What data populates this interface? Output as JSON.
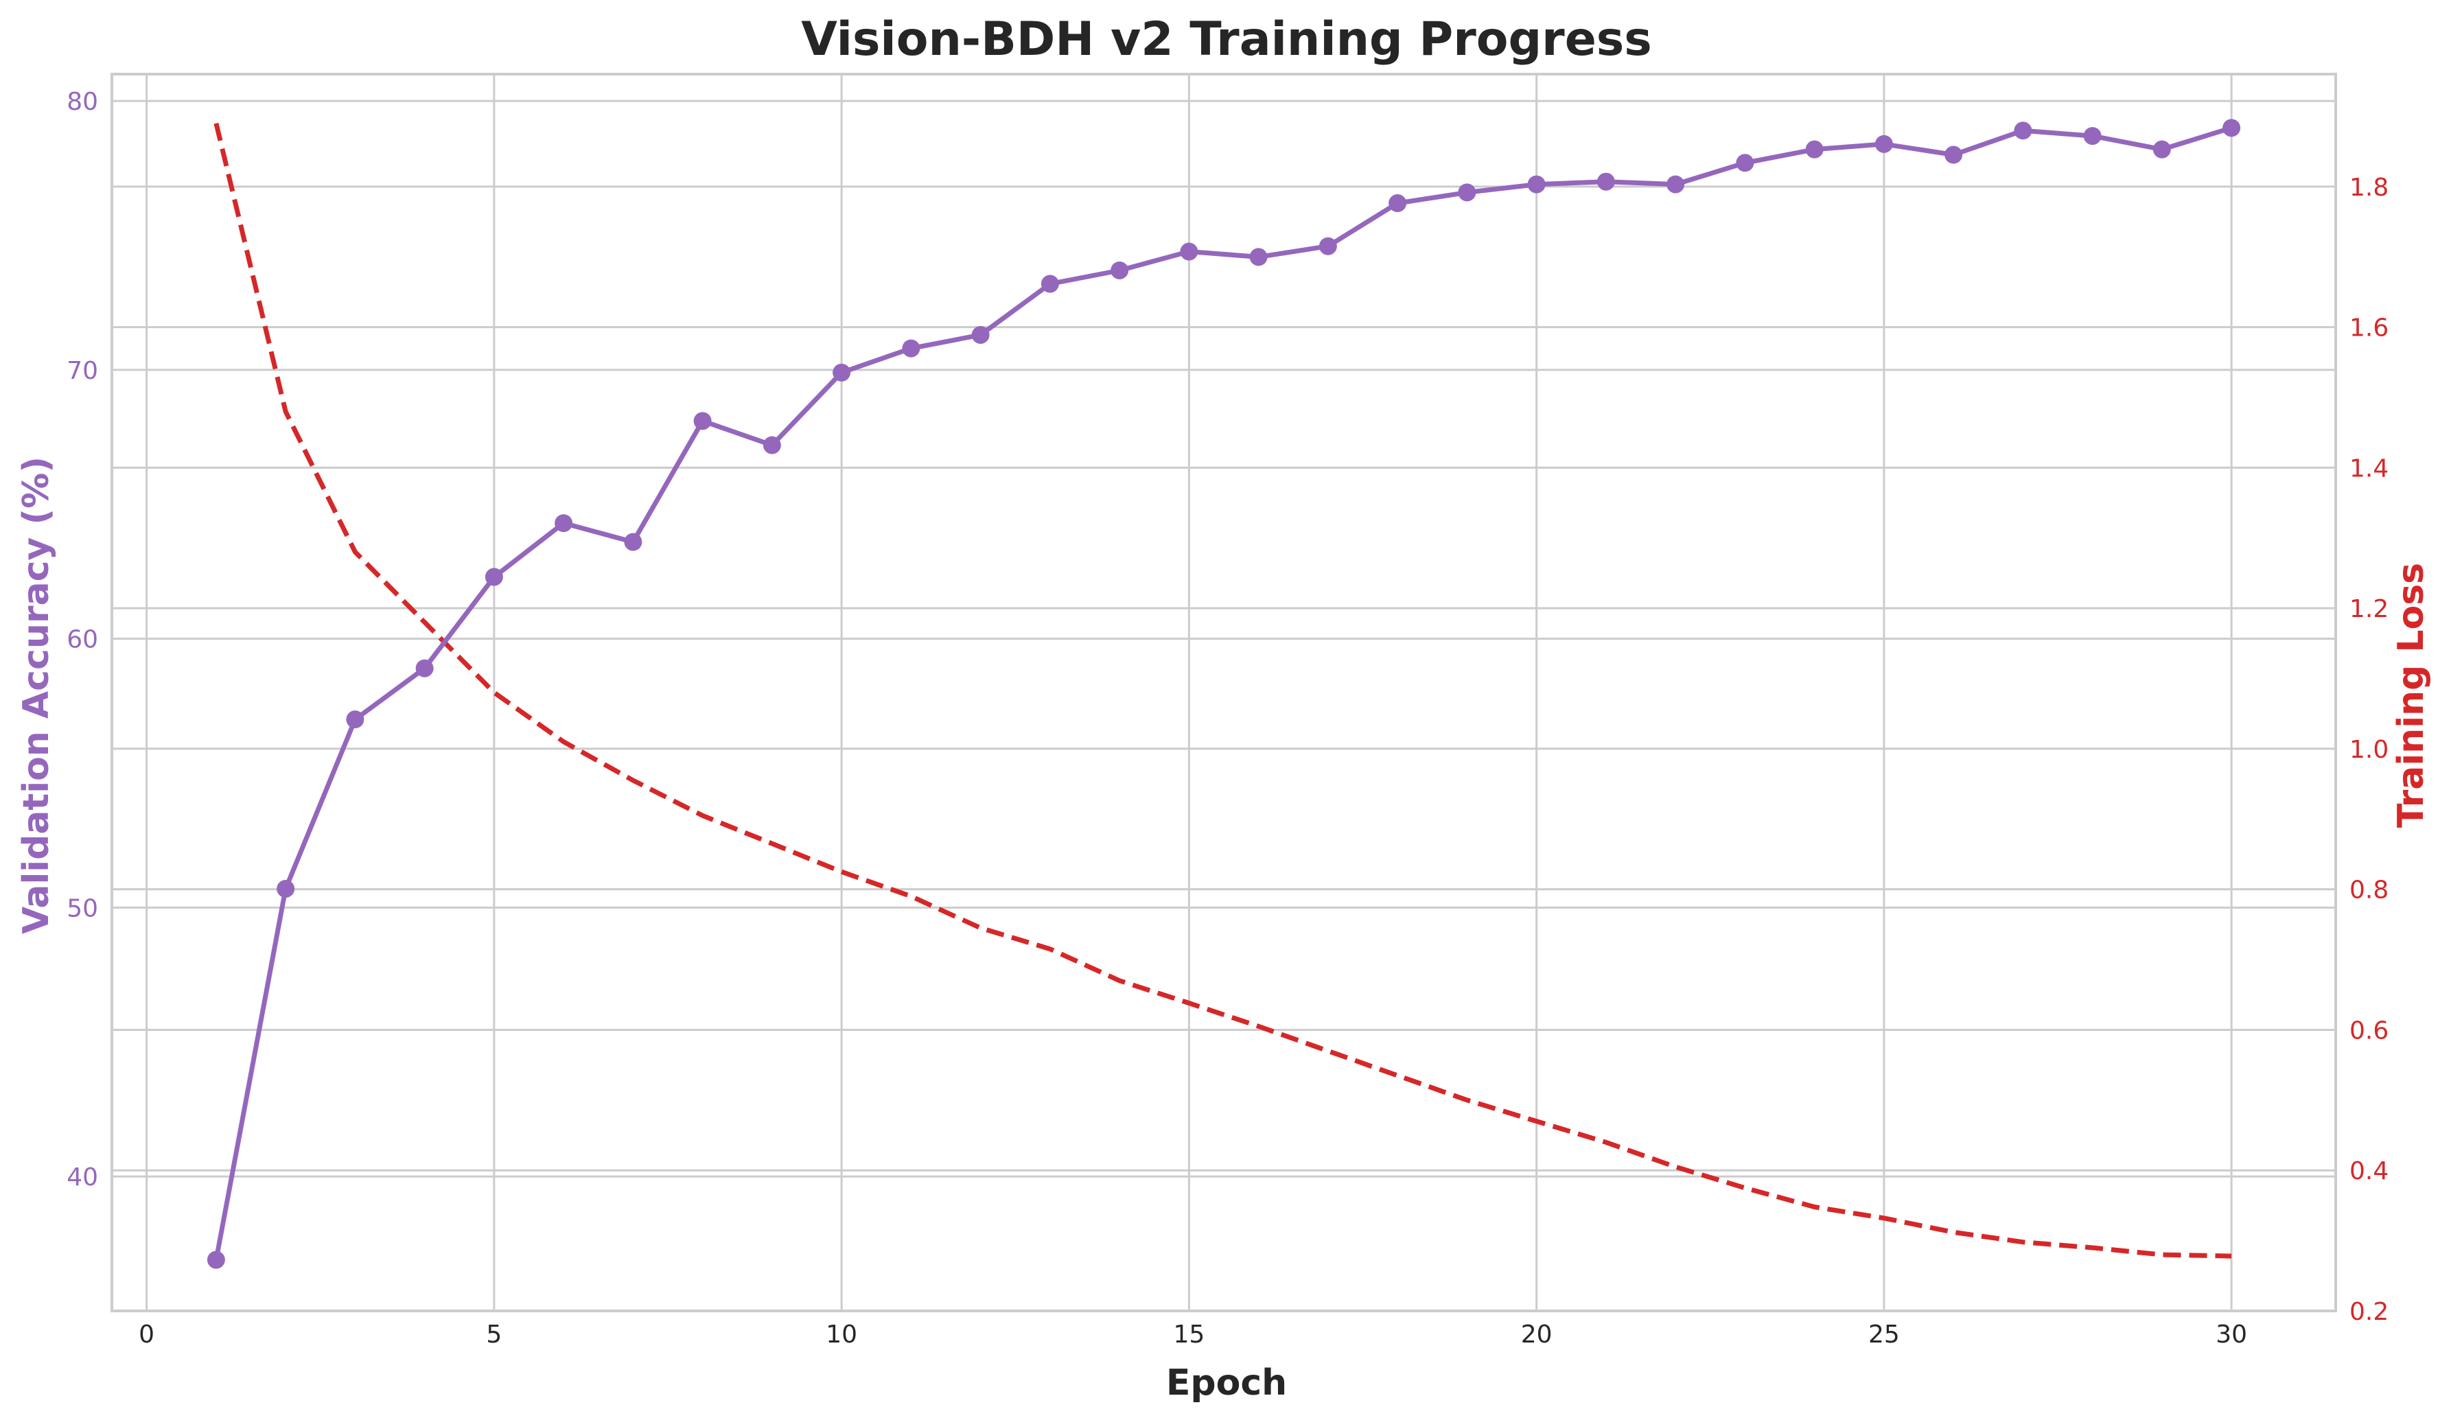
{
  "chart_data": {
    "type": "line",
    "title": "Vision-BDH v2 Training Progress",
    "xlabel": "Epoch",
    "ylabel_left": "Validation Accuracy (%)",
    "ylabel_right": "Training Loss",
    "xlim": [
      -0.5,
      31.5
    ],
    "ylim_left": [
      35,
      81
    ],
    "ylim_right": [
      0.2,
      1.96
    ],
    "x_ticks": [
      0,
      5,
      10,
      15,
      20,
      25,
      30
    ],
    "y_ticks_left": [
      40,
      50,
      60,
      70,
      80
    ],
    "y_ticks_right": [
      0.2,
      0.4,
      0.6,
      0.8,
      1.0,
      1.2,
      1.4,
      1.6,
      1.8
    ],
    "grid": true,
    "x": [
      1,
      2,
      3,
      4,
      5,
      6,
      7,
      8,
      9,
      10,
      11,
      12,
      13,
      14,
      15,
      16,
      17,
      18,
      19,
      20,
      21,
      22,
      23,
      24,
      25,
      26,
      27,
      28,
      29,
      30
    ],
    "series": [
      {
        "axis": "left",
        "color": "#9467bd",
        "style": "solid",
        "marker": "circle",
        "values": [
          36.9,
          50.7,
          57.0,
          58.9,
          62.3,
          64.3,
          63.6,
          68.1,
          67.2,
          69.9,
          70.8,
          71.3,
          73.2,
          73.7,
          74.4,
          74.2,
          74.6,
          76.2,
          76.6,
          76.9,
          77.0,
          76.9,
          77.7,
          78.2,
          78.4,
          78.0,
          78.9,
          78.7,
          78.2,
          79.0
        ]
      },
      {
        "axis": "right",
        "color": "#d62728",
        "style": "dashed",
        "marker": "none",
        "values": [
          1.89,
          1.48,
          1.28,
          1.18,
          1.08,
          1.01,
          0.955,
          0.905,
          0.865,
          0.825,
          0.79,
          0.745,
          0.715,
          0.67,
          0.638,
          0.605,
          0.57,
          0.535,
          0.5,
          0.47,
          0.44,
          0.405,
          0.375,
          0.348,
          0.332,
          0.312,
          0.298,
          0.29,
          0.28,
          0.278
        ]
      }
    ]
  }
}
